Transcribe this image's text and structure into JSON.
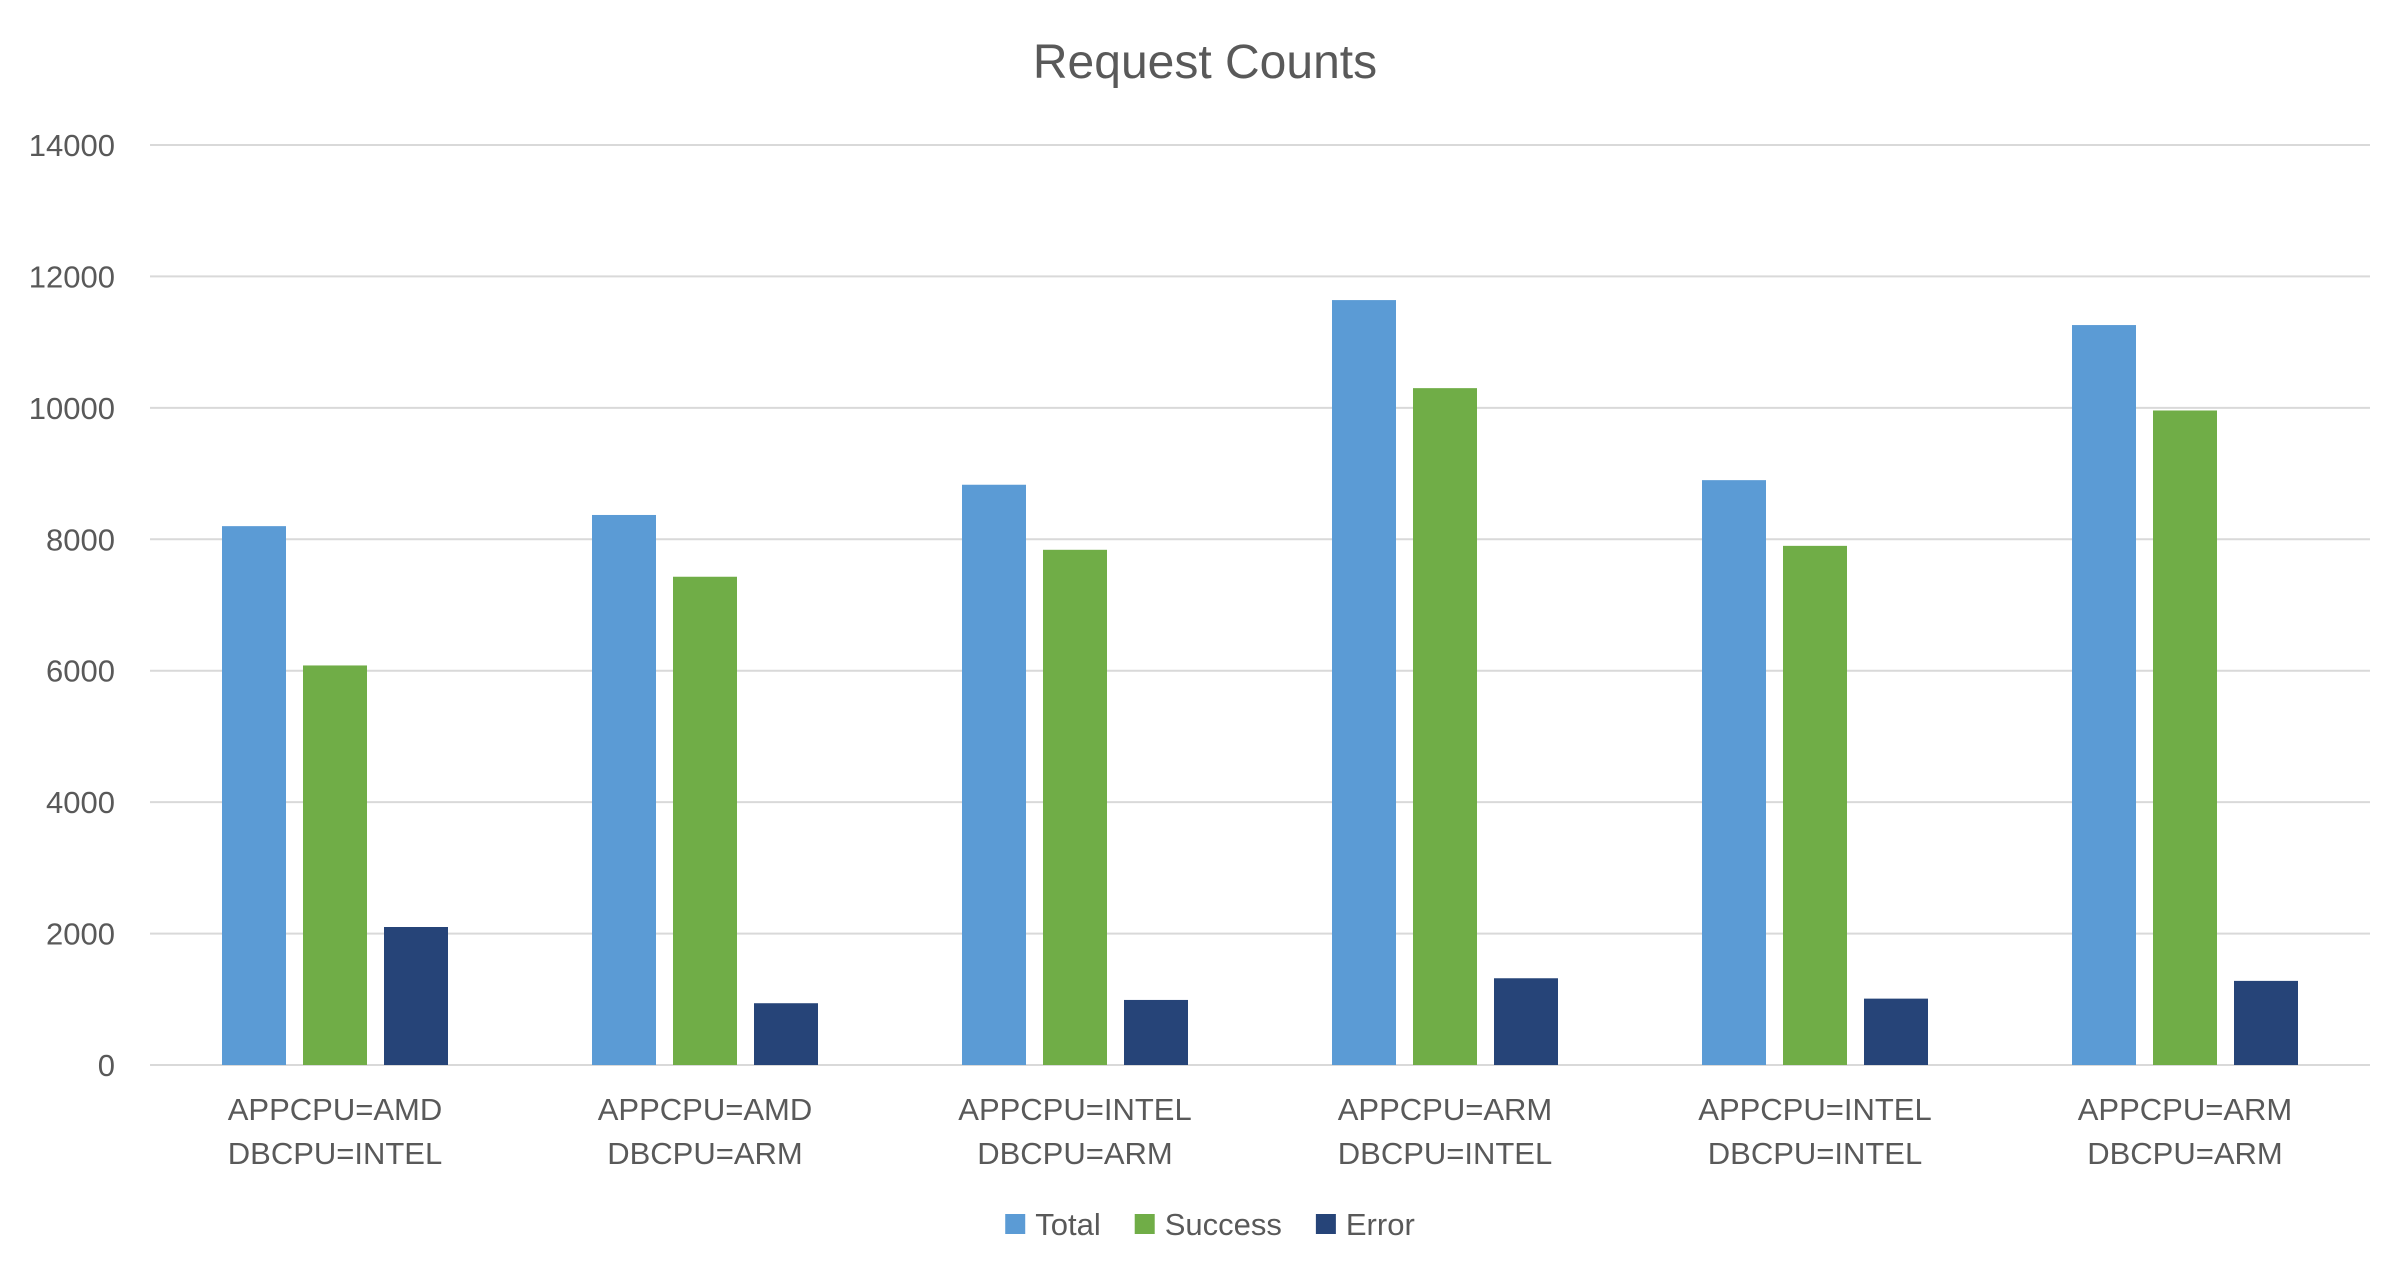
{
  "chart_data": {
    "type": "bar",
    "title": "Request Counts",
    "xlabel": "",
    "ylabel": "",
    "categories": [
      [
        "APPCPU=AMD",
        "DBCPU=INTEL"
      ],
      [
        "APPCPU=AMD",
        "DBCPU=ARM"
      ],
      [
        "APPCPU=INTEL",
        "DBCPU=ARM"
      ],
      [
        "APPCPU=ARM",
        "DBCPU=INTEL"
      ],
      [
        "APPCPU=INTEL",
        "DBCPU=INTEL"
      ],
      [
        "APPCPU=ARM",
        "DBCPU=ARM"
      ]
    ],
    "series": [
      {
        "name": "Total",
        "color": "#5b9bd5",
        "values": [
          8200,
          8370,
          8830,
          11640,
          8900,
          11260
        ]
      },
      {
        "name": "Success",
        "color": "#70ad47",
        "values": [
          6080,
          7430,
          7840,
          10300,
          7900,
          9960
        ]
      },
      {
        "name": "Error",
        "color": "#264478",
        "values": [
          2100,
          940,
          990,
          1320,
          1010,
          1280
        ]
      }
    ],
    "ylim": [
      0,
      14000
    ],
    "yticks": [
      "0",
      "2000",
      "4000",
      "6000",
      "8000",
      "10000",
      "12000",
      "14000"
    ],
    "grid": true,
    "legend_position": "bottom"
  }
}
